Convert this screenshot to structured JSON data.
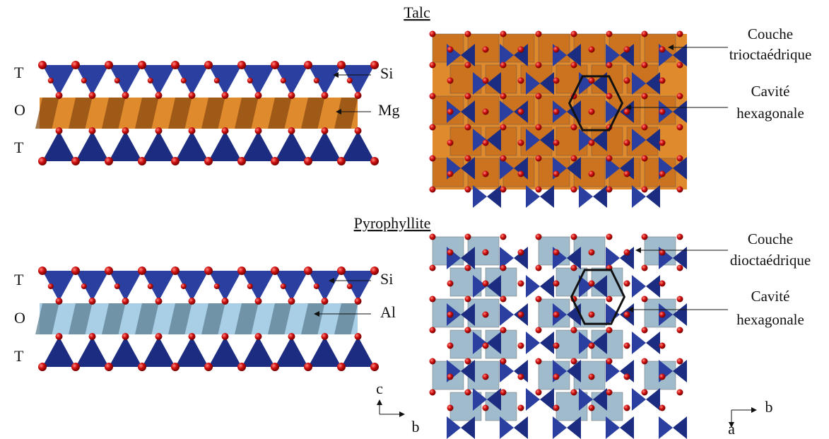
{
  "talc": {
    "title": "Talc",
    "side_view": {
      "layers": [
        "T",
        "O",
        "T"
      ],
      "labels": [
        "Si",
        "Mg"
      ]
    },
    "top_view": {
      "labels": [
        [
          "Couche",
          "trioctaédrique"
        ],
        [
          "Cavité",
          "hexagonale"
        ]
      ]
    }
  },
  "pyrophyllite": {
    "title": "Pyrophyllite",
    "side_view": {
      "layers": [
        "T",
        "O",
        "T"
      ],
      "labels": [
        "Si",
        "Al"
      ]
    },
    "top_view": {
      "labels": [
        [
          "Couche",
          "dioctaédrique"
        ],
        [
          "Cavité",
          "hexagonale"
        ]
      ]
    }
  },
  "axes": {
    "side": [
      "c",
      "b"
    ],
    "top": [
      "b",
      "a"
    ]
  }
}
